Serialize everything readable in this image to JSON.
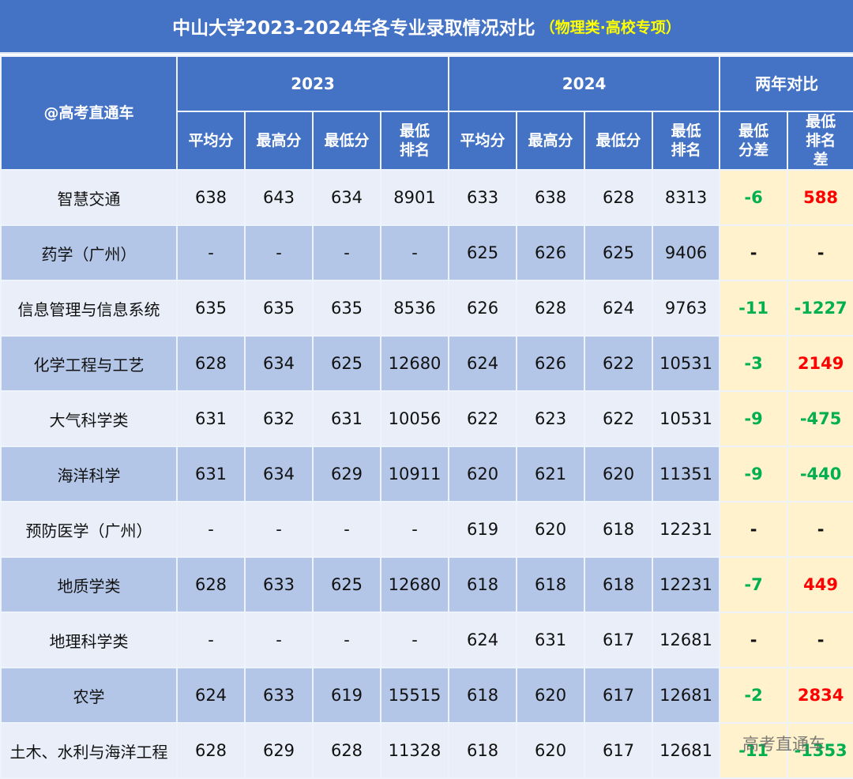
{
  "title": {
    "main": "中山大学2023-2024年各专业录取情况对比",
    "sub": "（物理类·高校专项）"
  },
  "header": {
    "corner_label": "@高考直通车",
    "groups": [
      {
        "label": "2023"
      },
      {
        "label": "2024"
      },
      {
        "label": "两年对比"
      }
    ],
    "columns": [
      {
        "label": "平均分"
      },
      {
        "label": "最高分"
      },
      {
        "label": "最低分"
      },
      {
        "label": "最低排名"
      },
      {
        "label": "平均分"
      },
      {
        "label": "最高分"
      },
      {
        "label": "最低分"
      },
      {
        "label": "最低排名"
      },
      {
        "label": "最低分差"
      },
      {
        "label": "最低排名差"
      }
    ]
  },
  "rows": [
    {
      "name": "智慧交通",
      "y2023": [
        "638",
        "643",
        "634",
        "8901"
      ],
      "y2024": [
        "633",
        "638",
        "628",
        "8313"
      ],
      "diff": [
        "-6",
        "588"
      ],
      "diff_sign": [
        "neg",
        "pos"
      ]
    },
    {
      "name": "药学（广州）",
      "y2023": [
        "-",
        "-",
        "-",
        "-"
      ],
      "y2024": [
        "625",
        "626",
        "625",
        "9406"
      ],
      "diff": [
        "-",
        "-"
      ],
      "diff_sign": [
        "na",
        "na"
      ]
    },
    {
      "name": "信息管理与信息系统",
      "y2023": [
        "635",
        "635",
        "635",
        "8536"
      ],
      "y2024": [
        "626",
        "628",
        "624",
        "9763"
      ],
      "diff": [
        "-11",
        "-1227"
      ],
      "diff_sign": [
        "neg",
        "neg"
      ]
    },
    {
      "name": "化学工程与工艺",
      "y2023": [
        "628",
        "634",
        "625",
        "12680"
      ],
      "y2024": [
        "624",
        "626",
        "622",
        "10531"
      ],
      "diff": [
        "-3",
        "2149"
      ],
      "diff_sign": [
        "neg",
        "pos"
      ]
    },
    {
      "name": "大气科学类",
      "y2023": [
        "631",
        "632",
        "631",
        "10056"
      ],
      "y2024": [
        "622",
        "623",
        "622",
        "10531"
      ],
      "diff": [
        "-9",
        "-475"
      ],
      "diff_sign": [
        "neg",
        "neg"
      ]
    },
    {
      "name": "海洋科学",
      "y2023": [
        "631",
        "634",
        "629",
        "10911"
      ],
      "y2024": [
        "620",
        "621",
        "620",
        "11351"
      ],
      "diff": [
        "-9",
        "-440"
      ],
      "diff_sign": [
        "neg",
        "neg"
      ]
    },
    {
      "name": "预防医学（广州）",
      "y2023": [
        "-",
        "-",
        "-",
        "-"
      ],
      "y2024": [
        "619",
        "620",
        "618",
        "12231"
      ],
      "diff": [
        "-",
        "-"
      ],
      "diff_sign": [
        "na",
        "na"
      ]
    },
    {
      "name": "地质学类",
      "y2023": [
        "628",
        "633",
        "625",
        "12680"
      ],
      "y2024": [
        "618",
        "618",
        "618",
        "12231"
      ],
      "diff": [
        "-7",
        "449"
      ],
      "diff_sign": [
        "neg",
        "pos"
      ]
    },
    {
      "name": "地理科学类",
      "y2023": [
        "-",
        "-",
        "-",
        "-"
      ],
      "y2024": [
        "624",
        "631",
        "617",
        "12681"
      ],
      "diff": [
        "-",
        "-"
      ],
      "diff_sign": [
        "na",
        "na"
      ]
    },
    {
      "name": "农学",
      "y2023": [
        "624",
        "633",
        "619",
        "15515"
      ],
      "y2024": [
        "618",
        "620",
        "617",
        "12681"
      ],
      "diff": [
        "-2",
        "2834"
      ],
      "diff_sign": [
        "neg",
        "pos"
      ]
    },
    {
      "name": "土木、水利与海洋工程",
      "y2023": [
        "628",
        "629",
        "628",
        "11328"
      ],
      "y2024": [
        "618",
        "620",
        "617",
        "12681"
      ],
      "diff": [
        "-11",
        "-1353"
      ],
      "diff_sign": [
        "neg",
        "neg"
      ]
    }
  ],
  "watermark": "高考直通车",
  "colors": {
    "header_bg": "#4472C4",
    "row_light": "#E9EEF8",
    "row_dark": "#B4C6E7",
    "diff_bg": "#FFF2CC",
    "positive": "#FF0000",
    "negative": "#00B050",
    "subtitle": "#FFFF00"
  }
}
